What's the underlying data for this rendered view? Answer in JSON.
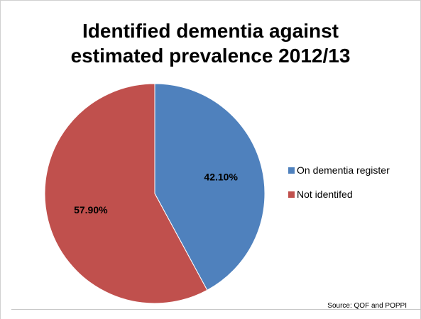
{
  "chart_data": {
    "type": "pie",
    "title_lines": [
      "Identified dementia against",
      "estimated prevalence 2012/13"
    ],
    "slices": [
      {
        "label": "On dementia register",
        "value": 42.1,
        "display": "42.10%",
        "color": "#4f81bd"
      },
      {
        "label": "Not identifed",
        "value": 57.9,
        "display": "57.90%",
        "color": "#c0504d"
      }
    ],
    "legend_position": "right",
    "source": "Source: QOF and POPPI"
  }
}
